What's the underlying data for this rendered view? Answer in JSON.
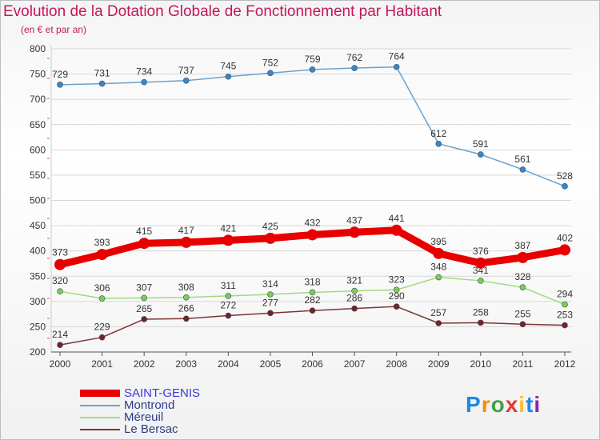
{
  "header": {
    "title": "Evolution de la Dotation Globale de Fonctionnement par Habitant",
    "subtitle": "(en € et par an)"
  },
  "brand": {
    "text": "Proxiti",
    "letter_colors": [
      "#1e88e5",
      "#fb8c00",
      "#43a047",
      "#e53935",
      "#fbc02d",
      "#1e88e5",
      "#8e24aa"
    ]
  },
  "chart_data": {
    "type": "line",
    "title": "Evolution de la Dotation Globale de Fonctionnement par Habitant",
    "subtitle": "(en € et par an)",
    "xlabel": "",
    "ylabel": "",
    "ylim": [
      200,
      800
    ],
    "yticks": [
      200,
      250,
      300,
      350,
      400,
      450,
      500,
      550,
      600,
      650,
      700,
      750,
      800
    ],
    "grid": true,
    "legend_position": "bottom-left",
    "x": [
      "2000",
      "2001",
      "2002",
      "2003",
      "2004",
      "2005",
      "2006",
      "2007",
      "2008",
      "2009",
      "2010",
      "2011",
      "2012"
    ],
    "series": [
      {
        "name": "Montrond",
        "color": "#6aa2cf",
        "marker": "#3c86c4",
        "emphasis": false,
        "values": [
          729,
          731,
          734,
          737,
          745,
          752,
          759,
          762,
          764,
          612,
          591,
          561,
          528
        ]
      },
      {
        "name": "Méreuil",
        "color": "#a3d97f",
        "marker": "#7ccd50",
        "emphasis": false,
        "values": [
          320,
          306,
          307,
          308,
          311,
          314,
          318,
          321,
          323,
          348,
          341,
          328,
          294
        ]
      },
      {
        "name": "Le Bersac",
        "color": "#7a3535",
        "marker": "#7a1f24",
        "emphasis": false,
        "values": [
          214,
          229,
          265,
          266,
          272,
          277,
          282,
          286,
          290,
          257,
          258,
          255,
          253
        ]
      },
      {
        "name": "SAINT-GENIS",
        "color": "#e80000",
        "marker": "#e80000",
        "emphasis": true,
        "values": [
          373,
          393,
          415,
          417,
          421,
          425,
          432,
          437,
          441,
          395,
          376,
          387,
          402
        ]
      }
    ],
    "legend_order": [
      "SAINT-GENIS",
      "Montrond",
      "Méreuil",
      "Le Bersac"
    ],
    "legend_label_colors": {
      "SAINT-GENIS": "#3b3bd6",
      "Montrond": "#2d3a8c",
      "Méreuil": "#2d3a8c",
      "Le Bersac": "#2d3a8c"
    }
  }
}
